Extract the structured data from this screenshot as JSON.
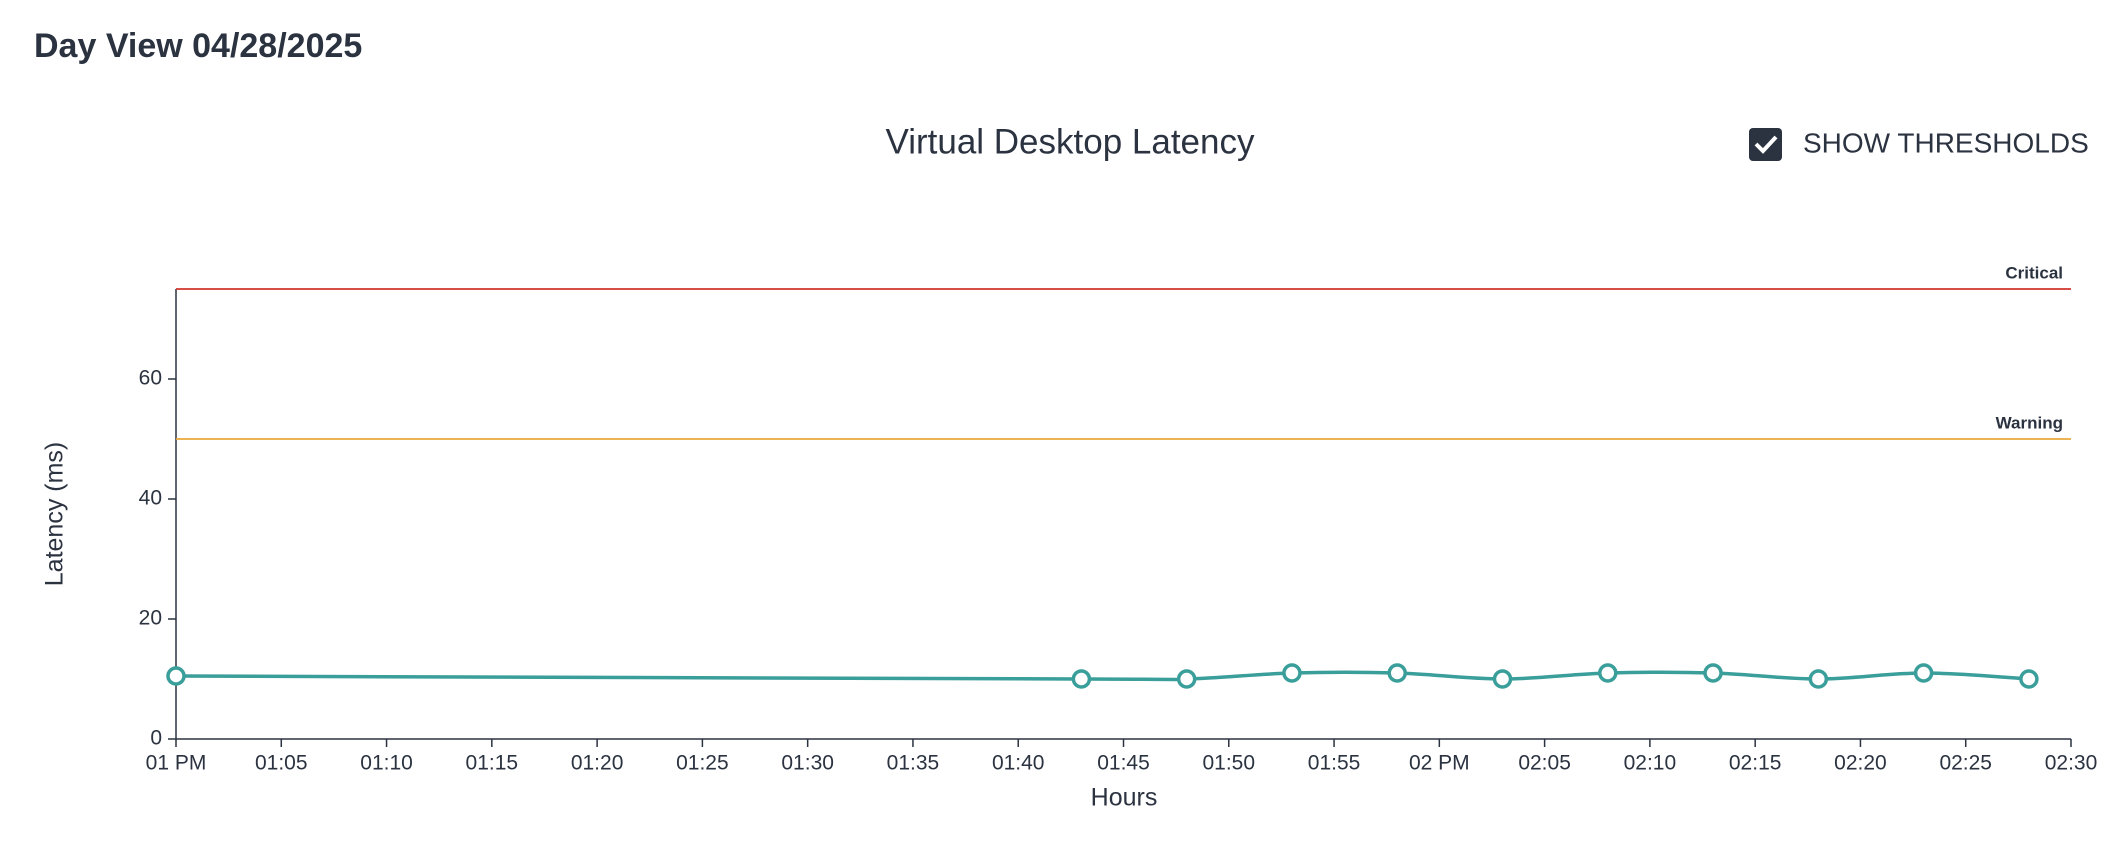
{
  "header": {
    "title": "Day View 04/28/2025"
  },
  "controls": {
    "show_thresholds": {
      "label": "SHOW THRESHOLDS",
      "checked": true
    }
  },
  "chart_data": {
    "type": "line",
    "title": "Virtual Desktop Latency",
    "x_label": "Hours",
    "y_label": "Latency (ms)",
    "x": [
      "13:00",
      "13:43",
      "13:48",
      "13:53",
      "13:58",
      "14:03",
      "14:08",
      "14:13",
      "14:18",
      "14:23",
      "14:28"
    ],
    "series": [
      {
        "name": "Latency",
        "color": "#3a9e9a",
        "values": [
          10.5,
          10,
          10,
          11,
          11,
          10,
          11,
          11,
          10,
          11,
          10
        ]
      }
    ],
    "xlim": [
      "13:00",
      "14:30"
    ],
    "xticks": [
      {
        "value": "13:00",
        "label": "01 PM"
      },
      {
        "value": "13:05",
        "label": "01:05"
      },
      {
        "value": "13:10",
        "label": "01:10"
      },
      {
        "value": "13:15",
        "label": "01:15"
      },
      {
        "value": "13:20",
        "label": "01:20"
      },
      {
        "value": "13:25",
        "label": "01:25"
      },
      {
        "value": "13:30",
        "label": "01:30"
      },
      {
        "value": "13:35",
        "label": "01:35"
      },
      {
        "value": "13:40",
        "label": "01:40"
      },
      {
        "value": "13:45",
        "label": "01:45"
      },
      {
        "value": "13:50",
        "label": "01:50"
      },
      {
        "value": "13:55",
        "label": "01:55"
      },
      {
        "value": "14:00",
        "label": "02 PM"
      },
      {
        "value": "14:05",
        "label": "02:05"
      },
      {
        "value": "14:10",
        "label": "02:10"
      },
      {
        "value": "14:15",
        "label": "02:15"
      },
      {
        "value": "14:20",
        "label": "02:20"
      },
      {
        "value": "14:25",
        "label": "02:25"
      },
      {
        "value": "14:30",
        "label": "02:30"
      }
    ],
    "ylim": [
      0,
      75
    ],
    "yticks": [
      0,
      20,
      40,
      60
    ],
    "thresholds": [
      {
        "name": "Critical",
        "value": 75,
        "color": "#d0342c"
      },
      {
        "name": "Warning",
        "value": 50,
        "color": "#e8a838"
      }
    ]
  }
}
